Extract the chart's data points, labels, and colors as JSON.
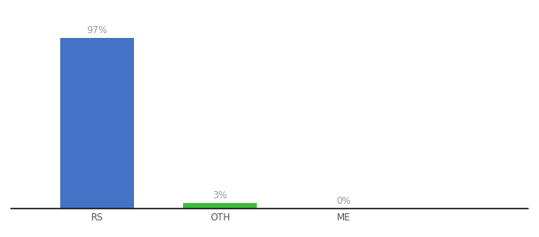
{
  "categories": [
    "RS",
    "OTH",
    "ME"
  ],
  "values": [
    97,
    3,
    0
  ],
  "bar_colors": [
    "#4472c4",
    "#3dbb3d",
    "#4472c4"
  ],
  "value_labels": [
    "97%",
    "3%",
    "0%"
  ],
  "label_color": "#9a9a9a",
  "background_color": "#ffffff",
  "ylim": [
    0,
    108
  ],
  "bar_width": 0.6,
  "label_fontsize": 8.5,
  "tick_fontsize": 8.5,
  "x_positions": [
    1,
    2,
    3
  ],
  "xlim": [
    0.3,
    4.5
  ]
}
